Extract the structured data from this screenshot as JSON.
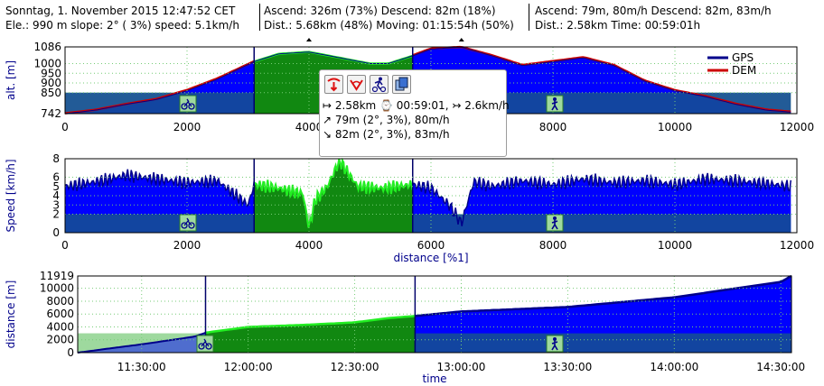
{
  "header": {
    "col1_line1": "Sonntag, 1. November 2015 12:47:52 CET",
    "col1_line2": "Ele.: 990 m slope:  2° ( 3%) speed: 5.1km/h",
    "col2_line1": "Ascend: 326m (73%) Descend: 82m (18%)",
    "col2_line2": "Dist.: 5.68km (48%) Moving: 01:15:54h (50%)",
    "col3_line1": "Ascend: 79m, 80m/h Descend: 82m, 83m/h",
    "col3_line2": "Dist.: 2.58km Time: 00:59:01h"
  },
  "tooltip": {
    "icons": [
      "start-marker-icon",
      "end-marker-icon",
      "activity-icon",
      "copy-icon"
    ],
    "line1": "↦ 2.58km ⌚ 00:59:01, ↣ 2.6km/h",
    "line2": "↗ 79m (2°, 3%), 80m/h",
    "line3": "↘ 82m (2°, 3%), 83m/h"
  },
  "colors": {
    "gps": "#00008b",
    "dem": "#cc0000",
    "fill_blue": "#0000ff",
    "fill_green": "#118811",
    "band_dark": "#144c96",
    "band_light": "#9ed99e",
    "line_green": "#22ee22"
  },
  "chart_data": [
    {
      "type": "area",
      "ylabel": "alt. [m]",
      "xlabel": "",
      "xlim": [
        0,
        12000
      ],
      "ylim": [
        742,
        1086
      ],
      "xticks": [
        "0",
        "2000",
        "4000",
        "6000",
        "8000",
        "10000",
        "12000"
      ],
      "yticks": [
        "742",
        "850",
        "900",
        "950",
        "1000",
        "1086"
      ],
      "legend": [
        "GPS",
        "DEM"
      ],
      "legend_position": "top-right",
      "x": [
        0,
        500,
        1000,
        1500,
        2000,
        2500,
        3100,
        3500,
        4000,
        4500,
        5000,
        5300,
        5700,
        6000,
        6500,
        7000,
        7500,
        8000,
        8500,
        9000,
        9500,
        10000,
        10500,
        11000,
        11500,
        11900
      ],
      "series": [
        {
          "name": "GPS",
          "values": [
            742,
            760,
            790,
            815,
            860,
            920,
            1010,
            1050,
            1060,
            1030,
            1000,
            1000,
            1040,
            1075,
            1085,
            1040,
            990,
            1010,
            1030,
            990,
            910,
            860,
            830,
            790,
            760,
            750
          ]
        },
        {
          "name": "DEM",
          "values": [
            744,
            762,
            792,
            818,
            864,
            924,
            1012,
            1052,
            1062,
            1032,
            1003,
            1002,
            1043,
            1078,
            1086,
            1043,
            993,
            1013,
            1033,
            993,
            913,
            863,
            833,
            793,
            763,
            752
          ]
        }
      ],
      "segments": [
        {
          "x_range": [
            0,
            3100
          ],
          "activity": "bike"
        },
        {
          "x_range": [
            3100,
            5700
          ],
          "activity": "selected"
        },
        {
          "x_range": [
            5700,
            11900
          ],
          "activity": "walk"
        }
      ]
    },
    {
      "type": "area",
      "ylabel": "Speed [km/h]",
      "xlabel": "distance [%1]",
      "xlim": [
        0,
        12000
      ],
      "ylim": [
        0,
        8
      ],
      "xticks": [
        "0",
        "2000",
        "4000",
        "6000",
        "8000",
        "10000",
        "12000"
      ],
      "yticks": [
        "0",
        "2",
        "3",
        "4",
        "5",
        "6",
        "8"
      ],
      "x": [
        0,
        500,
        1000,
        1500,
        2000,
        2500,
        3000,
        3100,
        3500,
        3900,
        4000,
        4100,
        4300,
        4500,
        4800,
        5200,
        5700,
        6000,
        6300,
        6500,
        6700,
        7000,
        7500,
        8000,
        8500,
        9000,
        9500,
        10000,
        10500,
        11000,
        11500,
        11900
      ],
      "values": [
        5.0,
        5.5,
        6.2,
        5.8,
        5.4,
        5.6,
        3.0,
        5.2,
        4.8,
        4.2,
        0.5,
        3.5,
        5.0,
        7.8,
        5.0,
        4.8,
        5.2,
        4.8,
        3.0,
        1.0,
        5.5,
        5.0,
        5.6,
        5.2,
        5.8,
        5.4,
        5.6,
        5.2,
        5.8,
        5.6,
        5.3,
        5.0
      ]
    },
    {
      "type": "area",
      "ylabel": "distance [m]",
      "xlabel": "time",
      "xlim": [
        "11:12:00",
        "14:33:00"
      ],
      "ylim": [
        0,
        11919
      ],
      "xticks": [
        "11:30:00",
        "12:00:00",
        "12:30:00",
        "13:00:00",
        "13:30:00",
        "14:00:00",
        "14:30:00"
      ],
      "yticks": [
        "0",
        "2000",
        "4000",
        "6000",
        "8000",
        "10000",
        "11919"
      ],
      "x": [
        "11:12:00",
        "11:30:00",
        "11:45:00",
        "11:48:00",
        "12:00:00",
        "12:15:00",
        "12:30:00",
        "12:40:00",
        "12:47:00",
        "13:00:00",
        "13:30:00",
        "14:00:00",
        "14:30:00",
        "14:33:00"
      ],
      "values": [
        0,
        1300,
        2500,
        3100,
        4000,
        4300,
        4700,
        5400,
        5700,
        6400,
        7100,
        8600,
        11000,
        11919
      ]
    }
  ]
}
